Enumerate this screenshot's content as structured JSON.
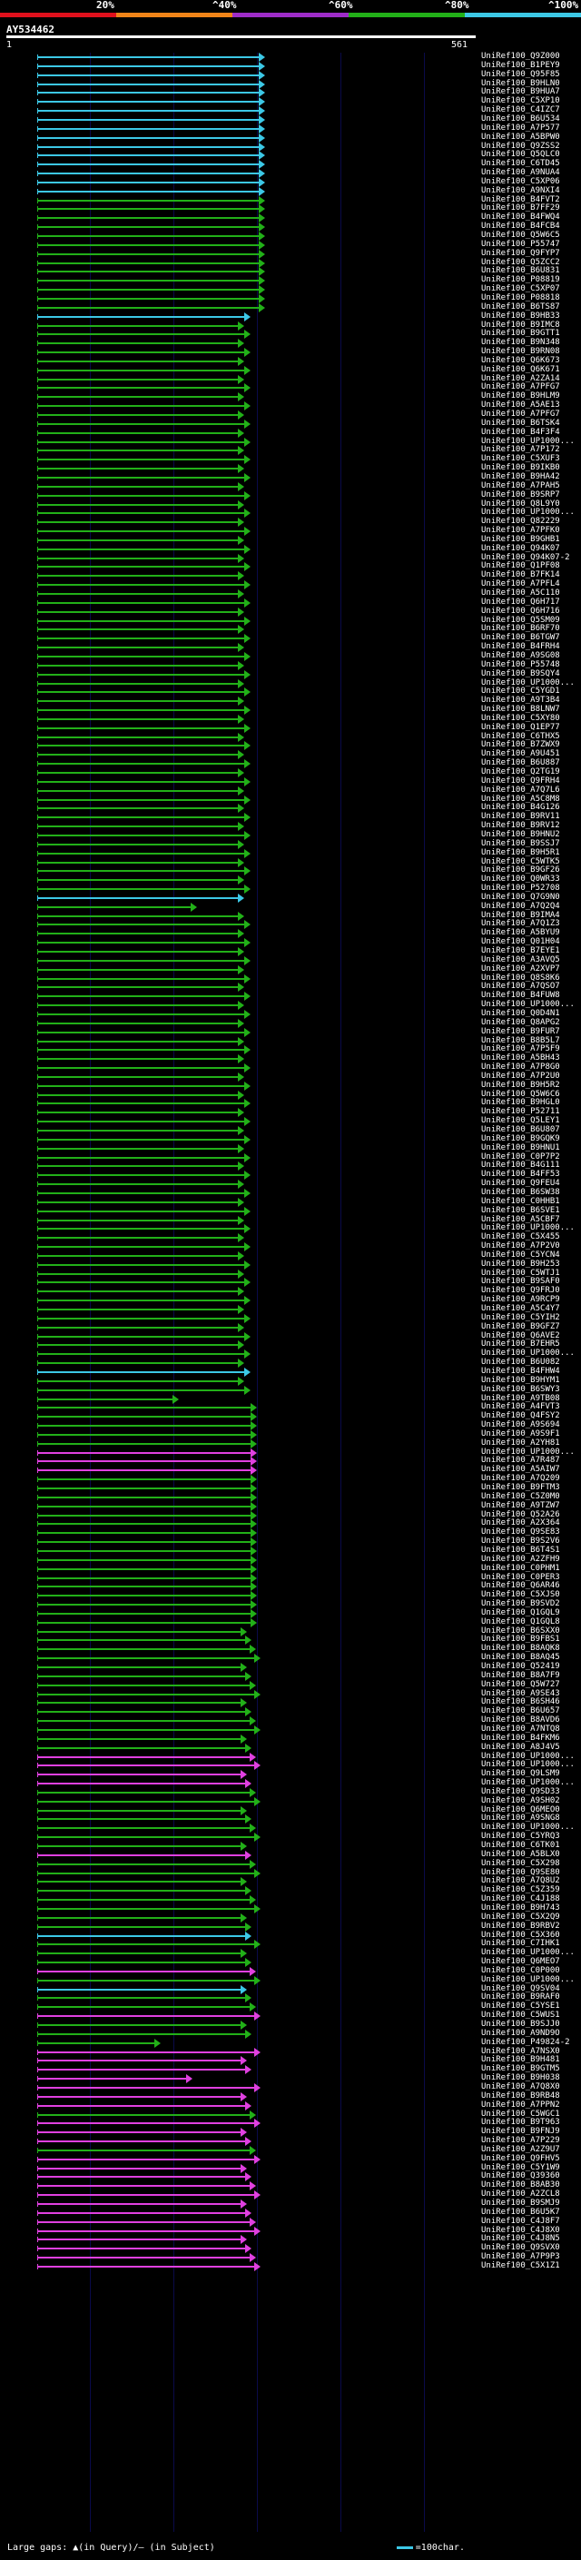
{
  "legend": {
    "ticks": [
      "20%",
      "^40%",
      "^60%",
      "^80%",
      "^100%"
    ],
    "colors": [
      "#e0101c",
      "#f08418",
      "#9e2cc8",
      "#22b018",
      "#3cc8e6"
    ]
  },
  "query": {
    "id": "AY534462",
    "start": "1",
    "end": "561"
  },
  "hits": [
    {
      "label": "UniRef100_Q9Z000",
      "color": "#3cc8e6"
    },
    {
      "label": "UniRef100_B1PEY9",
      "color": "#3cc8e6"
    },
    {
      "label": "UniRef100_Q95F85",
      "color": "#3cc8e6"
    },
    {
      "label": "UniRef100_B9HLN0",
      "color": "#3cc8e6"
    },
    {
      "label": "UniRef100_B9HUA7",
      "color": "#3cc8e6"
    },
    {
      "label": "UniRef100_C5XP10",
      "color": "#3cc8e6"
    },
    {
      "label": "UniRef100_C4IZC7",
      "color": "#3cc8e6"
    },
    {
      "label": "UniRef100_B6U534",
      "color": "#3cc8e6"
    },
    {
      "label": "UniRef100_A7P577",
      "color": "#3cc8e6"
    },
    {
      "label": "UniRef100_A5BPW0",
      "color": "#3cc8e6"
    },
    {
      "label": "UniRef100_Q9ZSS2",
      "color": "#3cc8e6"
    },
    {
      "label": "UniRef100_Q5QLC0",
      "color": "#3cc8e6"
    },
    {
      "label": "UniRef100_C6TD45",
      "color": "#3cc8e6"
    },
    {
      "label": "UniRef100_A9NUA4",
      "color": "#3cc8e6"
    },
    {
      "label": "UniRef100_C5XP06",
      "color": "#3cc8e6"
    },
    {
      "label": "UniRef100_A9NXI4",
      "color": "#3cc8e6"
    },
    {
      "label": "UniRef100_B4FVT2",
      "color": "#22b018"
    },
    {
      "label": "UniRef100_B7FF29",
      "color": "#22b018"
    },
    {
      "label": "UniRef100_B4FWQ4",
      "color": "#22b018"
    },
    {
      "label": "UniRef100_B4FCB4",
      "color": "#22b018"
    },
    {
      "label": "UniRef100_Q5W6C5",
      "color": "#22b018"
    },
    {
      "label": "UniRef100_P55747",
      "color": "#22b018"
    },
    {
      "label": "UniRef100_Q9FYP7",
      "color": "#22b018"
    },
    {
      "label": "UniRef100_Q5ZCC2",
      "color": "#22b018"
    },
    {
      "label": "UniRef100_B6U831",
      "color": "#22b018"
    },
    {
      "label": "UniRef100_P08819",
      "color": "#22b018"
    },
    {
      "label": "UniRef100_C5XP07",
      "color": "#22b018"
    },
    {
      "label": "UniRef100_P08818",
      "color": "#22b018"
    },
    {
      "label": "UniRef100_B6TS87",
      "color": "#22b018"
    },
    {
      "label": "UniRef100_B9HB33",
      "color": "#3cc8e6"
    },
    {
      "label": "UniRef100_B9IMC8",
      "color": "#22b018"
    },
    {
      "label": "UniRef100_B9GTT1",
      "color": "#22b018"
    },
    {
      "label": "UniRef100_B9N348",
      "color": "#22b018"
    },
    {
      "label": "UniRef100_B9RN08",
      "color": "#22b018"
    },
    {
      "label": "UniRef100_Q6K673",
      "color": "#22b018"
    },
    {
      "label": "UniRef100_Q6K671",
      "color": "#22b018"
    },
    {
      "label": "UniRef100_A2ZA14",
      "color": "#22b018"
    },
    {
      "label": "UniRef100_A7PFG7",
      "color": "#22b018"
    },
    {
      "label": "UniRef100_B9HLM9",
      "color": "#22b018"
    },
    {
      "label": "UniRef100_A5AE13",
      "color": "#22b018"
    },
    {
      "label": "UniRef100_A7PFG7",
      "color": "#22b018"
    },
    {
      "label": "UniRef100_B6TSK4",
      "color": "#22b018"
    },
    {
      "label": "UniRef100_B4F3F4",
      "color": "#22b018"
    },
    {
      "label": "UniRef100_UP1000...",
      "color": "#22b018"
    },
    {
      "label": "UniRef100_A7P172",
      "color": "#22b018"
    },
    {
      "label": "UniRef100_C5XUF3",
      "color": "#22b018"
    },
    {
      "label": "UniRef100_B9IKB0",
      "color": "#22b018"
    },
    {
      "label": "UniRef100_B9HA42",
      "color": "#22b018"
    },
    {
      "label": "UniRef100_A7PAH5",
      "color": "#22b018"
    },
    {
      "label": "UniRef100_B9SRP7",
      "color": "#22b018"
    },
    {
      "label": "UniRef100_Q8L9Y0",
      "color": "#22b018"
    },
    {
      "label": "UniRef100_UP1000...",
      "color": "#22b018"
    },
    {
      "label": "UniRef100_Q82229",
      "color": "#22b018"
    },
    {
      "label": "UniRef100_A7PFK0",
      "color": "#22b018"
    },
    {
      "label": "UniRef100_B9GHB1",
      "color": "#22b018"
    },
    {
      "label": "UniRef100_Q94K07",
      "color": "#22b018"
    },
    {
      "label": "UniRef100_Q94K07-2",
      "color": "#22b018"
    },
    {
      "label": "UniRef100_Q1PF08",
      "color": "#22b018"
    },
    {
      "label": "UniRef100_B7FK14",
      "color": "#22b018"
    },
    {
      "label": "UniRef100_A7PFL4",
      "color": "#22b018"
    },
    {
      "label": "UniRef100_A5C110",
      "color": "#22b018"
    },
    {
      "label": "UniRef100_Q6H717",
      "color": "#22b018"
    },
    {
      "label": "UniRef100_Q6H716",
      "color": "#22b018"
    },
    {
      "label": "UniRef100_Q5SM09",
      "color": "#22b018"
    },
    {
      "label": "UniRef100_B6RF70",
      "color": "#22b018"
    },
    {
      "label": "UniRef100_B6TGW7",
      "color": "#22b018"
    },
    {
      "label": "UniRef100_B4FRH4",
      "color": "#22b018"
    },
    {
      "label": "UniRef100_A9SG08",
      "color": "#22b018"
    },
    {
      "label": "UniRef100_P55748",
      "color": "#22b018"
    },
    {
      "label": "UniRef100_B9SQY4",
      "color": "#22b018"
    },
    {
      "label": "UniRef100_UP1000...",
      "color": "#22b018"
    },
    {
      "label": "UniRef100_C5YGD1",
      "color": "#22b018"
    },
    {
      "label": "UniRef100_A9T3B4",
      "color": "#22b018"
    },
    {
      "label": "UniRef100_B8LNW7",
      "color": "#22b018"
    },
    {
      "label": "UniRef100_C5XY80",
      "color": "#22b018"
    },
    {
      "label": "UniRef100_Q1EP77",
      "color": "#22b018"
    },
    {
      "label": "UniRef100_C6THX5",
      "color": "#22b018"
    },
    {
      "label": "UniRef100_B7ZWX9",
      "color": "#22b018"
    },
    {
      "label": "UniRef100_A9U451",
      "color": "#22b018"
    },
    {
      "label": "UniRef100_B6U887",
      "color": "#22b018"
    },
    {
      "label": "UniRef100_Q2TG19",
      "color": "#22b018"
    },
    {
      "label": "UniRef100_Q9FRH4",
      "color": "#22b018"
    },
    {
      "label": "UniRef100_A7Q7L6",
      "color": "#22b018"
    },
    {
      "label": "UniRef100_A5C8M8",
      "color": "#22b018"
    },
    {
      "label": "UniRef100_B4G126",
      "color": "#22b018"
    },
    {
      "label": "UniRef100_B9RV11",
      "color": "#22b018"
    },
    {
      "label": "UniRef100_B9RV12",
      "color": "#22b018"
    },
    {
      "label": "UniRef100_B9HNU2",
      "color": "#22b018"
    },
    {
      "label": "UniRef100_B9SSJ7",
      "color": "#22b018"
    },
    {
      "label": "UniRef100_B9H5R1",
      "color": "#22b018"
    },
    {
      "label": "UniRef100_C5WTK5",
      "color": "#22b018"
    },
    {
      "label": "UniRef100_B9GF26",
      "color": "#22b018"
    },
    {
      "label": "UniRef100_Q0WR33",
      "color": "#22b018"
    },
    {
      "label": "UniRef100_P52708",
      "color": "#22b018"
    },
    {
      "label": "UniRef100_Q7G9N0",
      "color": "#3cc8e6"
    },
    {
      "label": "UniRef100_A7Q2Q4",
      "color": "#22b018"
    },
    {
      "label": "UniRef100_B9IMA4",
      "color": "#22b018"
    },
    {
      "label": "UniRef100_A7Q1Z3",
      "color": "#22b018"
    },
    {
      "label": "UniRef100_A5BYU9",
      "color": "#22b018"
    },
    {
      "label": "UniRef100_Q01H04",
      "color": "#22b018"
    },
    {
      "label": "UniRef100_B7EYE1",
      "color": "#22b018"
    },
    {
      "label": "UniRef100_A3AVQ5",
      "color": "#22b018"
    },
    {
      "label": "UniRef100_A2XVP7",
      "color": "#22b018"
    },
    {
      "label": "UniRef100_Q8S8K6",
      "color": "#22b018"
    },
    {
      "label": "UniRef100_A7QSO7",
      "color": "#22b018"
    },
    {
      "label": "UniRef100_B4FUW8",
      "color": "#22b018"
    },
    {
      "label": "UniRef100_UP1000...",
      "color": "#22b018"
    },
    {
      "label": "UniRef100_Q0D4N1",
      "color": "#22b018"
    },
    {
      "label": "UniRef100_Q8APG2",
      "color": "#22b018"
    },
    {
      "label": "UniRef100_B9FUR7",
      "color": "#22b018"
    },
    {
      "label": "UniRef100_B8B5L7",
      "color": "#22b018"
    },
    {
      "label": "UniRef100_A7P5F9",
      "color": "#22b018"
    },
    {
      "label": "UniRef100_A5BH43",
      "color": "#22b018"
    },
    {
      "label": "UniRef100_A7P8G0",
      "color": "#22b018"
    },
    {
      "label": "UniRef100_A7P2U0",
      "color": "#22b018"
    },
    {
      "label": "UniRef100_B9H5R2",
      "color": "#22b018"
    },
    {
      "label": "UniRef100_Q5W6C6",
      "color": "#22b018"
    },
    {
      "label": "UniRef100_B9HGL0",
      "color": "#22b018"
    },
    {
      "label": "UniRef100_P52711",
      "color": "#22b018"
    },
    {
      "label": "UniRef100_Q5LEY1",
      "color": "#22b018"
    },
    {
      "label": "UniRef100_B6U807",
      "color": "#22b018"
    },
    {
      "label": "UniRef100_B9GQK9",
      "color": "#22b018"
    },
    {
      "label": "UniRef100_B9HNU1",
      "color": "#22b018"
    },
    {
      "label": "UniRef100_C0P7P2",
      "color": "#22b018"
    },
    {
      "label": "UniRef100_B4G111",
      "color": "#22b018"
    },
    {
      "label": "UniRef100_B4FF53",
      "color": "#22b018"
    },
    {
      "label": "UniRef100_Q9FEU4",
      "color": "#22b018"
    },
    {
      "label": "UniRef100_B6SW38",
      "color": "#22b018"
    },
    {
      "label": "UniRef100_C0HHB1",
      "color": "#22b018"
    },
    {
      "label": "UniRef100_B6SVE1",
      "color": "#22b018"
    },
    {
      "label": "UniRef100_A5CBF7",
      "color": "#22b018"
    },
    {
      "label": "UniRef100_UP1000...",
      "color": "#22b018"
    },
    {
      "label": "UniRef100_C5X455",
      "color": "#22b018"
    },
    {
      "label": "UniRef100_A7P2V0",
      "color": "#22b018"
    },
    {
      "label": "UniRef100_C5YCN4",
      "color": "#22b018"
    },
    {
      "label": "UniRef100_B9H253",
      "color": "#22b018"
    },
    {
      "label": "UniRef100_C5WTJ1",
      "color": "#22b018"
    },
    {
      "label": "UniRef100_B9SAF0",
      "color": "#22b018"
    },
    {
      "label": "UniRef100_Q9FRJ0",
      "color": "#22b018"
    },
    {
      "label": "UniRef100_A9RCP9",
      "color": "#22b018"
    },
    {
      "label": "UniRef100_A5C4Y7",
      "color": "#22b018"
    },
    {
      "label": "UniRef100_C5YIH2",
      "color": "#22b018"
    },
    {
      "label": "UniRef100_B9GFZ7",
      "color": "#22b018"
    },
    {
      "label": "UniRef100_Q6AVE2",
      "color": "#22b018"
    },
    {
      "label": "UniRef100_B7EHR5",
      "color": "#22b018"
    },
    {
      "label": "UniRef100_UP1000...",
      "color": "#22b018"
    },
    {
      "label": "UniRef100_B6U082",
      "color": "#22b018"
    },
    {
      "label": "UniRef100_B4FHW4",
      "color": "#3cc8e6"
    },
    {
      "label": "UniRef100_B9HYM1",
      "color": "#22b018"
    },
    {
      "label": "UniRef100_B6SWY3",
      "color": "#22b018"
    },
    {
      "label": "UniRef100_A9TB08",
      "color": "#22b018"
    },
    {
      "label": "UniRef100_A4FVT3",
      "color": "#22b018"
    },
    {
      "label": "UniRef100_Q4FSY2",
      "color": "#22b018"
    },
    {
      "label": "UniRef100_A9S694",
      "color": "#22b018"
    },
    {
      "label": "UniRef100_A9S9F1",
      "color": "#22b018"
    },
    {
      "label": "UniRef100_A2YH81",
      "color": "#22b018"
    },
    {
      "label": "UniRef100_UP1000...",
      "color": "#e040e0"
    },
    {
      "label": "UniRef100_A7R487",
      "color": "#e040e0"
    },
    {
      "label": "UniRef100_A5AIW7",
      "color": "#e040e0"
    },
    {
      "label": "UniRef100_A7Q209",
      "color": "#22b018"
    },
    {
      "label": "UniRef100_B9FTM3",
      "color": "#22b018"
    },
    {
      "label": "UniRef100_C5Z0M0",
      "color": "#22b018"
    },
    {
      "label": "UniRef100_A9TZW7",
      "color": "#22b018"
    },
    {
      "label": "UniRef100_Q52A26",
      "color": "#22b018"
    },
    {
      "label": "UniRef100_A2X364",
      "color": "#22b018"
    },
    {
      "label": "UniRef100_Q9SE83",
      "color": "#22b018"
    },
    {
      "label": "UniRef100_B9S2V6",
      "color": "#22b018"
    },
    {
      "label": "UniRef100_B6T4S1",
      "color": "#22b018"
    },
    {
      "label": "UniRef100_A2ZFH9",
      "color": "#22b018"
    },
    {
      "label": "UniRef100_C0PHM1",
      "color": "#22b018"
    },
    {
      "label": "UniRef100_C0PER3",
      "color": "#22b018"
    },
    {
      "label": "UniRef100_Q6AR46",
      "color": "#22b018"
    },
    {
      "label": "UniRef100_C5XJS0",
      "color": "#22b018"
    },
    {
      "label": "UniRef100_B9SVD2",
      "color": "#22b018"
    },
    {
      "label": "UniRef100_Q1GQL9",
      "color": "#22b018"
    },
    {
      "label": "UniRef100_Q1GQL8",
      "color": "#22b018"
    },
    {
      "label": "UniRef100_B6SXX0",
      "color": "#22b018"
    },
    {
      "label": "UniRef100_B9FBS1",
      "color": "#22b018"
    },
    {
      "label": "UniRef100_B8AQK8",
      "color": "#22b018"
    },
    {
      "label": "UniRef100_B8AQ45",
      "color": "#22b018"
    },
    {
      "label": "UniRef100_Q52419",
      "color": "#22b018"
    },
    {
      "label": "UniRef100_B8A7F9",
      "color": "#22b018"
    },
    {
      "label": "UniRef100_Q5W727",
      "color": "#22b018"
    },
    {
      "label": "UniRef100_A9SE43",
      "color": "#22b018"
    },
    {
      "label": "UniRef100_B6SH46",
      "color": "#22b018"
    },
    {
      "label": "UniRef100_B6U657",
      "color": "#22b018"
    },
    {
      "label": "UniRef100_B8AVD6",
      "color": "#22b018"
    },
    {
      "label": "UniRef100_A7NTQ8",
      "color": "#22b018"
    },
    {
      "label": "UniRef100_B4FKM6",
      "color": "#22b018"
    },
    {
      "label": "UniRef100_A8J4V5",
      "color": "#22b018"
    },
    {
      "label": "UniRef100_UP1000...",
      "color": "#e040e0"
    },
    {
      "label": "UniRef100_UP1000...",
      "color": "#e040e0"
    },
    {
      "label": "UniRef100_Q9LSM9",
      "color": "#e040e0"
    },
    {
      "label": "UniRef100_UP1000...",
      "color": "#e040e0"
    },
    {
      "label": "UniRef100_Q9SD33",
      "color": "#22b018"
    },
    {
      "label": "UniRef100_A9SH02",
      "color": "#22b018"
    },
    {
      "label": "UniRef100_Q6MEO0",
      "color": "#22b018"
    },
    {
      "label": "UniRef100_A9SNG8",
      "color": "#22b018"
    },
    {
      "label": "UniRef100_UP1000...",
      "color": "#22b018"
    },
    {
      "label": "UniRef100_C5YRQ3",
      "color": "#22b018"
    },
    {
      "label": "UniRef100_C6TK01",
      "color": "#22b018"
    },
    {
      "label": "UniRef100_A5BLX0",
      "color": "#e040e0"
    },
    {
      "label": "UniRef100_C5X298",
      "color": "#22b018"
    },
    {
      "label": "UniRef100_Q9SE80",
      "color": "#22b018"
    },
    {
      "label": "UniRef100_A7Q8U2",
      "color": "#22b018"
    },
    {
      "label": "UniRef100_C5Z359",
      "color": "#22b018"
    },
    {
      "label": "UniRef100_C4J188",
      "color": "#22b018"
    },
    {
      "label": "UniRef100_B9H743",
      "color": "#22b018"
    },
    {
      "label": "UniRef100_C5X2Q9",
      "color": "#22b018"
    },
    {
      "label": "UniRef100_B9RBV2",
      "color": "#22b018"
    },
    {
      "label": "UniRef100_C5X360",
      "color": "#3cc8e6"
    },
    {
      "label": "UniRef100_C7IHK1",
      "color": "#22b018"
    },
    {
      "label": "UniRef100_UP1000...",
      "color": "#22b018"
    },
    {
      "label": "UniRef100_Q6MEO7",
      "color": "#22b018"
    },
    {
      "label": "UniRef100_C0P000",
      "color": "#e040e0"
    },
    {
      "label": "UniRef100_UP1000...",
      "color": "#22b018"
    },
    {
      "label": "UniRef100_Q9SV04",
      "color": "#3cc8e6"
    },
    {
      "label": "UniRef100_B9RAF0",
      "color": "#22b018"
    },
    {
      "label": "UniRef100_C5YSE1",
      "color": "#22b018"
    },
    {
      "label": "UniRef100_C5WUS1",
      "color": "#e040e0"
    },
    {
      "label": "UniRef100_B9SJJ0",
      "color": "#22b018"
    },
    {
      "label": "UniRef100_A9ND9O",
      "color": "#22b018"
    },
    {
      "label": "UniRef100_P49824-2",
      "color": "#22b018"
    },
    {
      "label": "UniRef100_A7NSX0",
      "color": "#e040e0"
    },
    {
      "label": "UniRef100_B9H481",
      "color": "#e040e0"
    },
    {
      "label": "UniRef100_B9GTM5",
      "color": "#e040e0"
    },
    {
      "label": "UniRef100_B9H038",
      "color": "#e040e0"
    },
    {
      "label": "UniRef100_A7Q8X0",
      "color": "#e040e0"
    },
    {
      "label": "UniRef100_B9RB48",
      "color": "#e040e0"
    },
    {
      "label": "UniRef100_A7PPN2",
      "color": "#e040e0"
    },
    {
      "label": "UniRef100_C5WGC1",
      "color": "#22b018"
    },
    {
      "label": "UniRef100_B9T963",
      "color": "#e040e0"
    },
    {
      "label": "UniRef100_B9FNJ9",
      "color": "#e040e0"
    },
    {
      "label": "UniRef100_A7P229",
      "color": "#e040e0"
    },
    {
      "label": "UniRef100_A2Z9U7",
      "color": "#22b018"
    },
    {
      "label": "UniRef100_Q9FHV5",
      "color": "#e040e0"
    },
    {
      "label": "UniRef100_C5Y1W9",
      "color": "#e040e0"
    },
    {
      "label": "UniRef100_Q39360",
      "color": "#e040e0"
    },
    {
      "label": "UniRef100_B8AB30",
      "color": "#e040e0"
    },
    {
      "label": "UniRef100_A2ZCL8",
      "color": "#e040e0"
    },
    {
      "label": "UniRef100_B9SMJ9",
      "color": "#e040e0"
    },
    {
      "label": "UniRef100_B6U5K7",
      "color": "#e040e0"
    },
    {
      "label": "UniRef100_C4J8F7",
      "color": "#e040e0"
    },
    {
      "label": "UniRef100_C4J8X0",
      "color": "#e040e0"
    },
    {
      "label": "UniRef100_C4J8N5",
      "color": "#e040e0"
    },
    {
      "label": "UniRef100_Q9SVX0",
      "color": "#e040e0"
    },
    {
      "label": "UniRef100_A7P9P3",
      "color": "#e040e0"
    },
    {
      "label": "UniRef100_C5X1Z1",
      "color": "#e040e0"
    }
  ],
  "footer": {
    "gaps": "Large gaps: ▲(in Query)/– (in Subject)",
    "scale": "=100char."
  }
}
